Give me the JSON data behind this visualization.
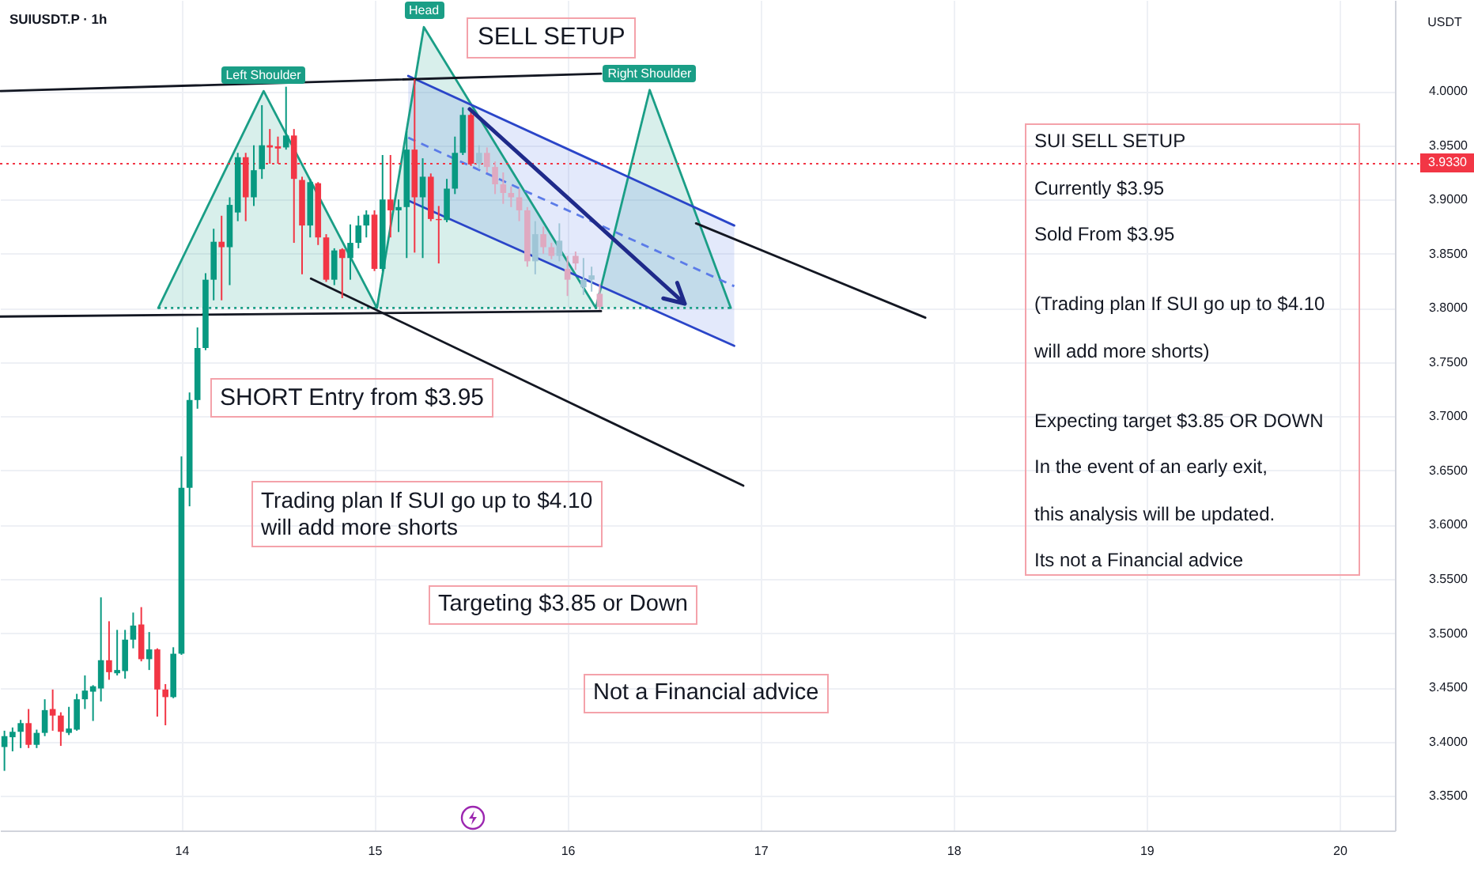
{
  "chart_data": {
    "type": "candlestick",
    "title": "SUIUSDT.P · 1h",
    "ylabel": "USDT",
    "x": [
      13.083,
      13.125,
      13.167,
      13.208,
      13.25,
      13.292,
      13.333,
      13.375,
      13.417,
      13.458,
      13.5,
      13.542,
      13.583,
      13.625,
      13.667,
      13.708,
      13.75,
      13.792,
      13.833,
      13.875,
      13.917,
      13.958,
      14,
      14.042,
      14.083,
      14.125,
      14.167,
      14.208,
      14.25,
      14.292,
      14.333,
      14.375,
      14.417,
      14.458,
      14.5,
      14.542,
      14.583,
      14.625,
      14.667,
      14.708,
      14.75,
      14.792,
      14.833,
      14.875,
      14.917,
      14.958,
      15,
      15.042,
      15.083,
      15.125,
      15.167,
      15.208,
      15.25,
      15.292,
      15.333,
      15.375,
      15.417,
      15.458,
      15.5
    ],
    "ohlc": [
      [
        3.395,
        3.41,
        3.373,
        3.405
      ],
      [
        3.404,
        3.413,
        3.391,
        3.409
      ],
      [
        3.409,
        3.42,
        3.394,
        3.417
      ],
      [
        3.417,
        3.43,
        3.394,
        3.397
      ],
      [
        3.397,
        3.411,
        3.394,
        3.408
      ],
      [
        3.408,
        3.439,
        3.405,
        3.429
      ],
      [
        3.43,
        3.448,
        3.41,
        3.424
      ],
      [
        3.424,
        3.427,
        3.396,
        3.409
      ],
      [
        3.408,
        3.432,
        3.406,
        3.412
      ],
      [
        3.411,
        3.444,
        3.41,
        3.439
      ],
      [
        3.439,
        3.461,
        3.43,
        3.447
      ],
      [
        3.446,
        3.452,
        3.419,
        3.451
      ],
      [
        3.449,
        3.533,
        3.437,
        3.475
      ],
      [
        3.475,
        3.511,
        3.457,
        3.464
      ],
      [
        3.463,
        3.503,
        3.461,
        3.466
      ],
      [
        3.465,
        3.503,
        3.458,
        3.494
      ],
      [
        3.494,
        3.519,
        3.486,
        3.507
      ],
      [
        3.508,
        3.524,
        3.474,
        3.476
      ],
      [
        3.476,
        3.501,
        3.466,
        3.485
      ],
      [
        3.485,
        3.486,
        3.423,
        3.448
      ],
      [
        3.448,
        3.453,
        3.415,
        3.441
      ],
      [
        3.441,
        3.487,
        3.44,
        3.481
      ],
      [
        3.481,
        3.663,
        3.48,
        3.634
      ],
      [
        3.634,
        3.722,
        3.617,
        3.715
      ],
      [
        3.715,
        3.782,
        3.707,
        3.763
      ],
      [
        3.763,
        3.832,
        3.761,
        3.826
      ],
      [
        3.826,
        3.873,
        3.807,
        3.861
      ],
      [
        3.861,
        3.885,
        3.807,
        3.856
      ],
      [
        3.856,
        3.902,
        3.821,
        3.895
      ],
      [
        3.888,
        3.943,
        3.88,
        3.939
      ],
      [
        3.939,
        3.943,
        3.88,
        3.902
      ],
      [
        3.902,
        3.95,
        3.894,
        3.927
      ],
      [
        3.928,
        3.987,
        3.919,
        3.95
      ],
      [
        3.95,
        3.965,
        3.933,
        3.948
      ],
      [
        3.949,
        3.958,
        3.933,
        3.947
      ],
      [
        3.948,
        4.004,
        3.946,
        3.959
      ],
      [
        3.959,
        3.965,
        3.86,
        3.919
      ],
      [
        3.918,
        3.921,
        3.831,
        3.876
      ],
      [
        3.876,
        3.919,
        3.865,
        3.916
      ],
      [
        3.915,
        3.916,
        3.858,
        3.865
      ],
      [
        3.865,
        3.868,
        3.824,
        3.826
      ],
      [
        3.826,
        3.855,
        3.821,
        3.853
      ],
      [
        3.854,
        3.855,
        3.809,
        3.846
      ],
      [
        3.846,
        3.877,
        3.826,
        3.86
      ],
      [
        3.86,
        3.885,
        3.855,
        3.876
      ],
      [
        3.876,
        3.89,
        3.865,
        3.886
      ],
      [
        3.886,
        3.89,
        3.834,
        3.836
      ],
      [
        3.836,
        3.941,
        3.834,
        3.9
      ],
      [
        3.9,
        3.941,
        3.865,
        3.89
      ],
      [
        3.89,
        3.9,
        3.87,
        3.893
      ],
      [
        3.893,
        3.963,
        3.846,
        3.946
      ],
      [
        3.946,
        4.011,
        3.851,
        3.902
      ],
      [
        3.902,
        3.938,
        3.846,
        3.921
      ],
      [
        3.921,
        3.924,
        3.88,
        3.882
      ],
      [
        3.882,
        3.894,
        3.841,
        3.881
      ],
      [
        3.881,
        3.919,
        3.879,
        3.91
      ],
      [
        3.91,
        3.958,
        3.905,
        3.943
      ],
      [
        3.943,
        3.985,
        3.941,
        3.978
      ],
      [
        3.978,
        3.982,
        3.931,
        3.933
      ]
    ],
    "colors": [
      "#089981",
      "#089981",
      "#089981",
      "#f23645",
      "#089981",
      "#089981",
      "#f23645",
      "#f23645",
      "#089981",
      "#089981",
      "#089981",
      "#089981",
      "#089981",
      "#f23645",
      "#089981",
      "#089981",
      "#089981",
      "#f23645",
      "#089981",
      "#f23645",
      "#f23645",
      "#089981",
      "#089981",
      "#089981",
      "#089981",
      "#089981",
      "#089981",
      "#f23645",
      "#089981",
      "#089981",
      "#f23645",
      "#089981",
      "#089981",
      "#f23645",
      "#f23645",
      "#089981",
      "#f23645",
      "#f23645",
      "#089981",
      "#f23645",
      "#f23645",
      "#089981",
      "#f23645",
      "#089981",
      "#089981",
      "#089981",
      "#f23645",
      "#089981",
      "#f23645",
      "#089981",
      "#089981",
      "#f23645",
      "#089981",
      "#f23645",
      "#f23645",
      "#089981",
      "#089981",
      "#089981",
      "#f23645"
    ],
    "series": [
      {
        "type": "line",
        "x": [
          13.88,
          14.426,
          15.013,
          15.256,
          16.147,
          16.426,
          16.846
        ],
        "values": [
          3.8,
          4.0,
          3.8,
          4.059,
          3.8,
          4.001,
          3.8
        ],
        "lower": [
          3.8,
          3.8,
          3.8,
          3.8,
          3.8,
          3.8,
          3.8
        ],
        "upper": [
          3.8,
          4.0,
          3.8,
          4.059,
          3.8,
          4.001,
          3.8
        ],
        "color": "#1a9e86"
      },
      {
        "type": "line",
        "x": [
          13.88,
          16.846
        ],
        "values": [
          3.8,
          3.8
        ],
        "color": "#1a9e86",
        "line_style": "dotted"
      },
      {
        "type": "line",
        "x": [
          15.175,
          16.864
        ],
        "values": [
          3.957,
          3.82
        ],
        "lower": [
          3.899,
          3.765
        ],
        "upper": [
          4.014,
          3.876
        ],
        "color": "#5b7be8",
        "line_style": "dashed"
      },
      {
        "type": "line",
        "x": [
          15.175,
          16.864
        ],
        "values": [
          4.014,
          3.876
        ],
        "color": "#2a45c8"
      },
      {
        "type": "line",
        "x": [
          15.175,
          16.864
        ],
        "values": [
          3.899,
          3.765
        ],
        "color": "#2a45c8"
      },
      {
        "type": "line",
        "x": [
          13.06,
          16.174
        ],
        "values": [
          4.0,
          4.016
        ],
        "color": "#131722"
      },
      {
        "type": "line",
        "x": [
          13.06,
          16.174
        ],
        "values": [
          3.792,
          3.797
        ],
        "color": "#131722"
      },
      {
        "type": "line",
        "x": [
          14.671,
          16.911
        ],
        "values": [
          3.827,
          3.636
        ],
        "color": "#131722"
      },
      {
        "type": "line",
        "x": [
          16.666,
          17.854
        ],
        "values": [
          3.878,
          3.791
        ],
        "color": "#131722"
      },
      {
        "type": "candlestick",
        "x": [
          15.542,
          15.583,
          15.625,
          15.667,
          15.708,
          15.75,
          15.792,
          15.833,
          15.875,
          15.917,
          15.958,
          16,
          16.042,
          16.083,
          16.125,
          16.167
        ],
        "ohlc": [
          [
            3.933,
            3.95,
            3.928,
            3.943
          ],
          [
            3.943,
            3.948,
            3.925,
            3.93
          ],
          [
            3.93,
            3.935,
            3.905,
            3.914
          ],
          [
            3.914,
            3.925,
            3.896,
            3.906
          ],
          [
            3.906,
            3.912,
            3.893,
            3.902
          ],
          [
            3.902,
            3.91,
            3.88,
            3.89
          ],
          [
            3.89,
            3.893,
            3.838,
            3.843
          ],
          [
            3.843,
            3.88,
            3.831,
            3.868
          ],
          [
            3.868,
            3.875,
            3.85,
            3.856
          ],
          [
            3.856,
            3.86,
            3.845,
            3.848
          ],
          [
            3.848,
            3.878,
            3.843,
            3.862
          ],
          [
            3.836,
            3.848,
            3.811,
            3.826
          ],
          [
            3.848,
            3.852,
            3.835,
            3.841
          ],
          [
            3.819,
            3.846,
            3.812,
            3.826
          ],
          [
            3.826,
            3.838,
            3.815,
            3.83
          ],
          [
            3.813,
            3.822,
            3.798,
            3.801
          ]
        ],
        "colors": [
          "#9fc5d6",
          "#dfa9c0",
          "#dfa9c0",
          "#dfa9c0",
          "#dfa9c0",
          "#dfa9c0",
          "#dfa9c0",
          "#9fc5d6",
          "#dfa9c0",
          "#dfa9c0",
          "#9fc5d6",
          "#dfa9c0",
          "#dfa9c0",
          "#9fc5d6",
          "#9fc5d6",
          "#dfa9c0"
        ]
      }
    ],
    "xlim": [
      13.06,
      20.287
    ],
    "ylim": [
      3.318,
      4.084
    ],
    "xticks": [
      14,
      15,
      16,
      17,
      18,
      19,
      20
    ],
    "yticks": [
      {
        "value": 3.35,
        "label": "3.3500"
      },
      {
        "value": 3.4,
        "label": "3.4000"
      },
      {
        "value": 3.45,
        "label": "3.4500"
      },
      {
        "value": 3.5,
        "label": "3.5000"
      },
      {
        "value": 3.55,
        "label": "3.5500"
      },
      {
        "value": 3.6,
        "label": "3.6000"
      },
      {
        "value": 3.65,
        "label": "3.6500"
      },
      {
        "value": 3.7,
        "label": "3.7000"
      },
      {
        "value": 3.75,
        "label": "3.7500"
      },
      {
        "value": 3.8,
        "label": "3.8000"
      },
      {
        "value": 3.85,
        "label": "3.8500"
      },
      {
        "value": 3.9,
        "label": "3.9000"
      },
      {
        "value": 3.95,
        "label": "3.9500"
      },
      {
        "value": 4.0,
        "label": "4.0000"
      }
    ],
    "grid": true,
    "ref_lines": [
      {
        "axis": "y",
        "value": 3.933,
        "label": "3.9330",
        "color": "#f23645",
        "line_style": "dotted"
      }
    ],
    "annotations": [
      {
        "text": "Left Shoulder",
        "x": 14.426,
        "y": 4.0
      },
      {
        "text": "Head",
        "x": 15.256,
        "y": 4.059
      },
      {
        "text": "Right Shoulder",
        "x": 16.426,
        "y": 4.001
      },
      "SELL SETUP",
      "SHORT Entry from $3.95",
      "Trading plan If SUI go up to $4.10\nwill add more shorts",
      "Targeting $3.85 or Down",
      "Not a Financial advice",
      "SUI SELL SETUP\nCurrently $3.95\nSold From $3.95\n\n(Trading plan If SUI go up to $4.10\nwill add more shorts)\n\nExpecting target $3.85 OR DOWN\nIn the event of an early exit,\nthis analysis will be updated.\nIts not a Financial advice"
    ]
  }
}
